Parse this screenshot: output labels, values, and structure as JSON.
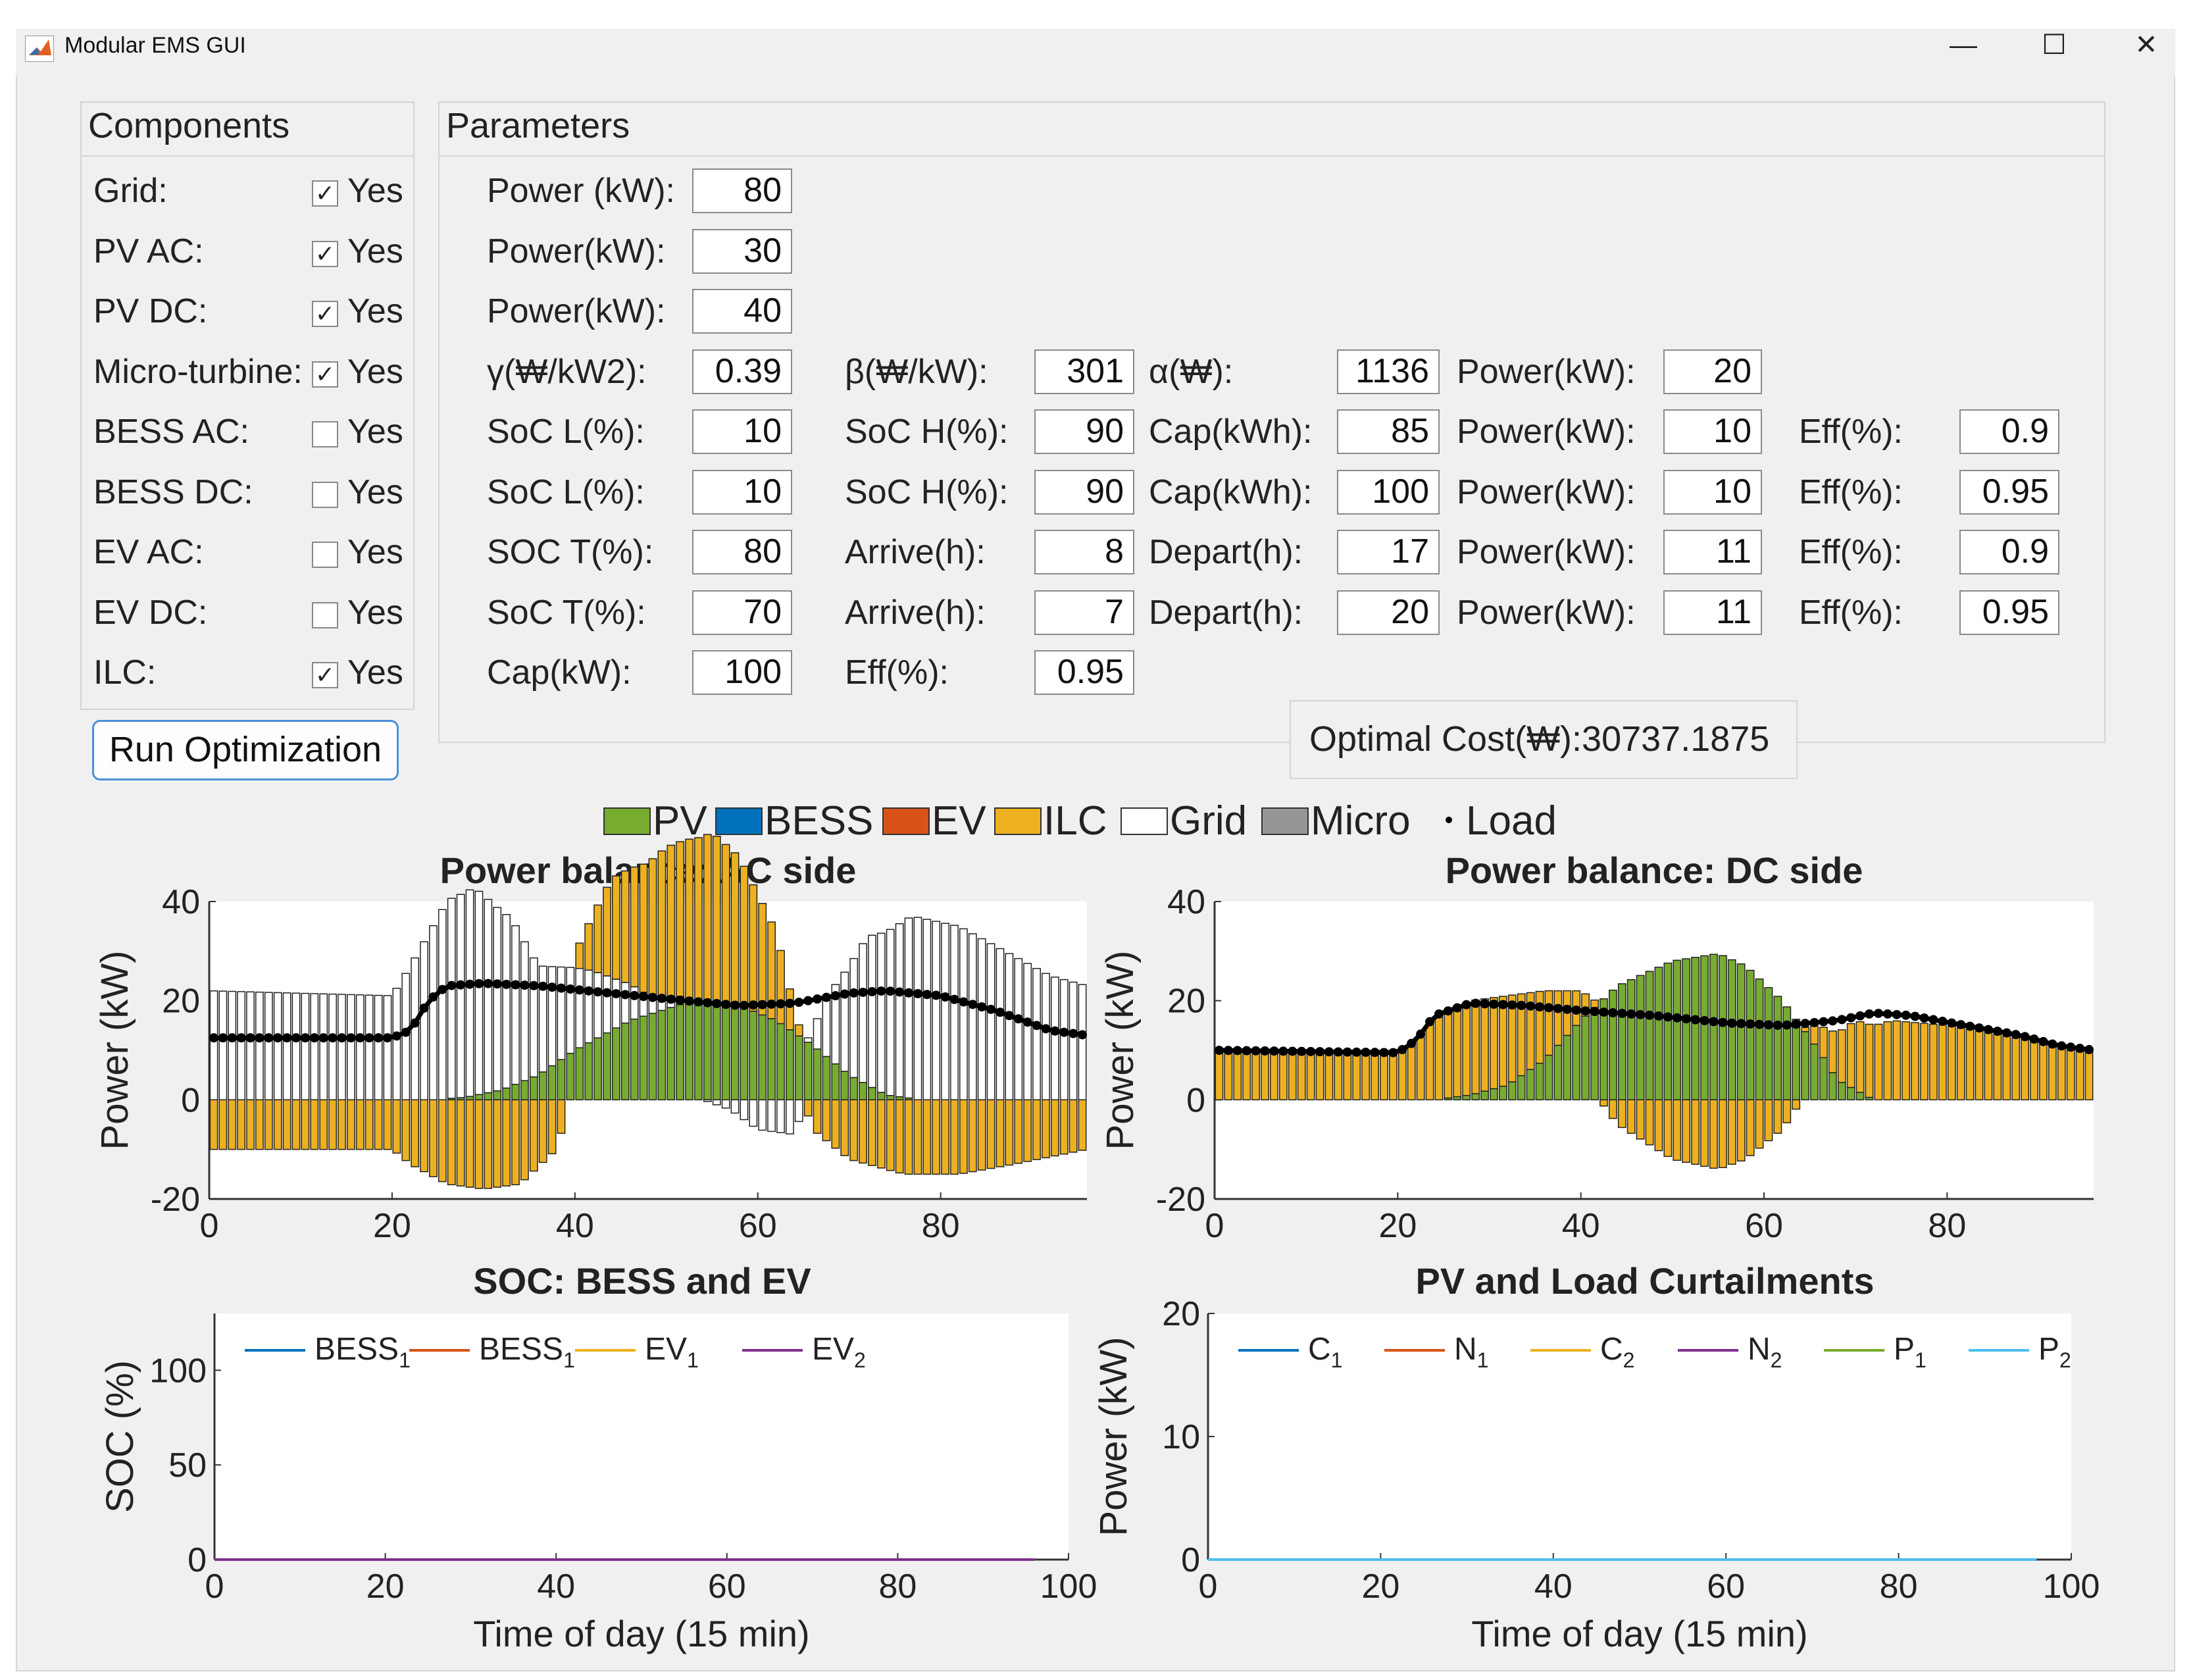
{
  "window": {
    "title": "Modular EMS GUI",
    "minimize": "—",
    "maximize": "☐",
    "close": "✕"
  },
  "components": {
    "title": "Components",
    "items": [
      {
        "label": "Grid:",
        "checked": true,
        "yes": "Yes"
      },
      {
        "label": "PV AC:",
        "checked": true,
        "yes": "Yes"
      },
      {
        "label": "PV DC:",
        "checked": true,
        "yes": "Yes"
      },
      {
        "label": "Micro-turbine:",
        "checked": true,
        "yes": "Yes"
      },
      {
        "label": "BESS AC:",
        "checked": false,
        "yes": "Yes"
      },
      {
        "label": "BESS DC:",
        "checked": false,
        "yes": "Yes"
      },
      {
        "label": "EV AC:",
        "checked": false,
        "yes": "Yes"
      },
      {
        "label": "EV DC:",
        "checked": false,
        "yes": "Yes"
      },
      {
        "label": "ILC:",
        "checked": true,
        "yes": "Yes"
      }
    ],
    "run_button": "Run Optimization"
  },
  "parameters": {
    "title": "Parameters",
    "rows": [
      [
        {
          "label": "Power (kW):",
          "value": "80"
        }
      ],
      [
        {
          "label": "Power(kW):",
          "value": "30"
        }
      ],
      [
        {
          "label": "Power(kW):",
          "value": "40"
        }
      ],
      [
        {
          "label": "γ(₩/kW2):",
          "value": "0.39"
        },
        {
          "label": "β(₩/kW):",
          "value": "301"
        },
        {
          "label": "α(₩):",
          "value": "1136"
        },
        {
          "label": "Power(kW):",
          "value": "20"
        }
      ],
      [
        {
          "label": "SoC L(%):",
          "value": "10"
        },
        {
          "label": "SoC H(%):",
          "value": "90"
        },
        {
          "label": "Cap(kWh):",
          "value": "85"
        },
        {
          "label": "Power(kW):",
          "value": "10"
        },
        {
          "label": "Eff(%):",
          "value": "0.9"
        }
      ],
      [
        {
          "label": "SoC L(%):",
          "value": "10"
        },
        {
          "label": "SoC H(%):",
          "value": "90"
        },
        {
          "label": "Cap(kWh):",
          "value": "100"
        },
        {
          "label": "Power(kW):",
          "value": "10"
        },
        {
          "label": "Eff(%):",
          "value": "0.95"
        }
      ],
      [
        {
          "label": "SOC T(%):",
          "value": "80"
        },
        {
          "label": "Arrive(h):",
          "value": "8"
        },
        {
          "label": "Depart(h):",
          "value": "17"
        },
        {
          "label": "Power(kW):",
          "value": "11"
        },
        {
          "label": "Eff(%):",
          "value": "0.9"
        }
      ],
      [
        {
          "label": "SoC T(%):",
          "value": "70"
        },
        {
          "label": "Arrive(h):",
          "value": "7"
        },
        {
          "label": "Depart(h):",
          "value": "20"
        },
        {
          "label": "Power(kW):",
          "value": "11"
        },
        {
          "label": "Eff(%):",
          "value": "0.95"
        }
      ],
      [
        {
          "label": "Cap(kW):",
          "value": "100"
        },
        {
          "label": "Eff(%):",
          "value": "0.95"
        }
      ]
    ],
    "optimal_cost_label": "Optimal Cost(₩):",
    "optimal_cost_value": "30737.1875"
  },
  "colors": {
    "pv": "#77ac30",
    "bess": "#0072bd",
    "ev": "#d95319",
    "ilc": "#edb120",
    "grid": "#ffffff",
    "micro": "#969696",
    "load": "#000000",
    "c1": "#0072bd",
    "n1": "#d95319",
    "c2": "#edb120",
    "n2": "#7e2f8e",
    "p1": "#77ac30",
    "p2": "#4dbeee"
  },
  "top_legend": [
    {
      "key": "pv",
      "label": "PV"
    },
    {
      "key": "bess",
      "label": "BESS"
    },
    {
      "key": "ev",
      "label": "EV"
    },
    {
      "key": "ilc",
      "label": "ILC"
    },
    {
      "key": "grid",
      "label": "Grid"
    },
    {
      "key": "micro",
      "label": "Micro"
    },
    {
      "key": "load",
      "label": "Load"
    }
  ],
  "chart_data": [
    {
      "type": "bar",
      "title": "Power balance: AC side",
      "xlabel": "",
      "ylabel": "Power (kW)",
      "xlim": [
        0,
        96
      ],
      "ylim": [
        -20,
        40
      ],
      "xticks": [
        0,
        20,
        40,
        60,
        80
      ],
      "yticks": [
        -20,
        0,
        20,
        40
      ],
      "series": [
        {
          "name": "Grid",
          "key": "grid",
          "points": [
            [
              0,
              22
            ],
            [
              20,
              21
            ],
            [
              22,
              27
            ],
            [
              26,
              40
            ],
            [
              29,
              42
            ],
            [
              33,
              34
            ],
            [
              36,
              22
            ],
            [
              42,
              14
            ],
            [
              48,
              4
            ],
            [
              54,
              0
            ],
            [
              57,
              -2
            ],
            [
              60,
              -6
            ],
            [
              64,
              -7
            ],
            [
              68,
              14
            ],
            [
              72,
              30
            ],
            [
              77,
              37
            ],
            [
              82,
              35
            ],
            [
              88,
              29
            ],
            [
              92,
              25
            ],
            [
              96,
              23
            ]
          ]
        },
        {
          "name": "ILC",
          "key": "ilc",
          "points": [
            [
              0,
              -10
            ],
            [
              20,
              -10
            ],
            [
              22,
              -13
            ],
            [
              26,
              -17
            ],
            [
              30,
              -18
            ],
            [
              34,
              -17
            ],
            [
              38,
              -10
            ],
            [
              40,
              3
            ],
            [
              44,
              20
            ],
            [
              50,
              30
            ],
            [
              55,
              34
            ],
            [
              58,
              30
            ],
            [
              62,
              18
            ],
            [
              64,
              5
            ],
            [
              66,
              -6
            ],
            [
              70,
              -12
            ],
            [
              76,
              -15
            ],
            [
              82,
              -15
            ],
            [
              88,
              -13
            ],
            [
              96,
              -10
            ]
          ]
        },
        {
          "name": "PV",
          "key": "pv",
          "points": [
            [
              0,
              0
            ],
            [
              24,
              0
            ],
            [
              28,
              0.5
            ],
            [
              32,
              2
            ],
            [
              36,
              5
            ],
            [
              40,
              10
            ],
            [
              46,
              16
            ],
            [
              52,
              19.5
            ],
            [
              55,
              20
            ],
            [
              58,
              19
            ],
            [
              62,
              16
            ],
            [
              66,
              11
            ],
            [
              70,
              5
            ],
            [
              74,
              1
            ],
            [
              78,
              0
            ],
            [
              96,
              0
            ]
          ]
        },
        {
          "name": "Load",
          "key": "load",
          "points": [
            [
              0,
              12.5
            ],
            [
              20,
              12.5
            ],
            [
              22,
              14
            ],
            [
              24,
              20
            ],
            [
              26,
              23
            ],
            [
              30,
              23.5
            ],
            [
              36,
              23
            ],
            [
              44,
              21.5
            ],
            [
              52,
              20
            ],
            [
              58,
              19
            ],
            [
              64,
              19.5
            ],
            [
              70,
              21.5
            ],
            [
              74,
              22
            ],
            [
              80,
              21
            ],
            [
              86,
              18
            ],
            [
              92,
              14
            ],
            [
              96,
              13
            ]
          ]
        }
      ]
    },
    {
      "type": "bar",
      "title": "Power balance: DC side",
      "xlabel": "",
      "ylabel": "Power (kW)",
      "xlim": [
        0,
        96
      ],
      "ylim": [
        -20,
        40
      ],
      "xticks": [
        0,
        20,
        40,
        60,
        80
      ],
      "yticks": [
        -20,
        0,
        20,
        40
      ],
      "series": [
        {
          "name": "ILC",
          "key": "ilc",
          "points": [
            [
              0,
              10
            ],
            [
              20,
              10
            ],
            [
              22,
              12
            ],
            [
              24,
              17
            ],
            [
              28,
              19
            ],
            [
              32,
              18
            ],
            [
              36,
              14
            ],
            [
              40,
              6
            ],
            [
              42,
              0
            ],
            [
              44,
              -5
            ],
            [
              50,
              -12
            ],
            [
              55,
              -14
            ],
            [
              58,
              -12
            ],
            [
              62,
              -6
            ],
            [
              66,
              5
            ],
            [
              70,
              14
            ],
            [
              74,
              16
            ],
            [
              80,
              15
            ],
            [
              86,
              13
            ],
            [
              92,
              11
            ],
            [
              96,
              10
            ]
          ]
        },
        {
          "name": "PV",
          "key": "pv",
          "points": [
            [
              0,
              0
            ],
            [
              24,
              0
            ],
            [
              28,
              1
            ],
            [
              32,
              3
            ],
            [
              36,
              8
            ],
            [
              40,
              16
            ],
            [
              44,
              23
            ],
            [
              50,
              28
            ],
            [
              55,
              29.5
            ],
            [
              58,
              27
            ],
            [
              62,
              20
            ],
            [
              66,
              10
            ],
            [
              68,
              4
            ],
            [
              72,
              0
            ],
            [
              96,
              0
            ]
          ]
        },
        {
          "name": "Load",
          "key": "load",
          "points": [
            [
              0,
              10
            ],
            [
              20,
              9.5
            ],
            [
              22,
              12
            ],
            [
              24,
              17
            ],
            [
              28,
              19.5
            ],
            [
              34,
              19
            ],
            [
              40,
              18
            ],
            [
              48,
              17
            ],
            [
              56,
              15.5
            ],
            [
              62,
              15
            ],
            [
              68,
              16
            ],
            [
              72,
              17.5
            ],
            [
              76,
              17
            ],
            [
              82,
              15
            ],
            [
              88,
              13
            ],
            [
              92,
              11
            ],
            [
              96,
              10
            ]
          ]
        }
      ]
    },
    {
      "type": "line",
      "title": "SOC: BESS and EV",
      "xlabel": "Time of day (15 min)",
      "ylabel": "SOC (%)",
      "xlim": [
        0,
        100
      ],
      "ylim": [
        0,
        130
      ],
      "xticks": [
        0,
        20,
        40,
        60,
        80,
        100
      ],
      "yticks": [
        0,
        50,
        100
      ],
      "series": [
        {
          "name": "BESS",
          "sub": "1",
          "key": "c1",
          "values": "all 0 for x 0-96"
        },
        {
          "name": "BESS",
          "sub": "1",
          "key": "n1",
          "values": "all 0 for x 0-96"
        },
        {
          "name": "EV",
          "sub": "1",
          "key": "c2",
          "values": "all 0 for x 0-96"
        },
        {
          "name": "EV",
          "sub": "2",
          "key": "n2",
          "values": "all 0 for x 0-96"
        }
      ]
    },
    {
      "type": "line",
      "title": "PV and Load Curtailments",
      "xlabel": "Time of day (15 min)",
      "ylabel": "Power (kW)",
      "xlim": [
        0,
        100
      ],
      "ylim": [
        0,
        20
      ],
      "xticks": [
        0,
        20,
        40,
        60,
        80,
        100
      ],
      "yticks": [
        0,
        10,
        20
      ],
      "series": [
        {
          "name": "C",
          "sub": "1",
          "key": "c1",
          "values": "all 0 for x 0-96"
        },
        {
          "name": "N",
          "sub": "1",
          "key": "n1",
          "values": "all 0 for x 0-96"
        },
        {
          "name": "C",
          "sub": "2",
          "key": "c2",
          "values": "all 0 for x 0-96"
        },
        {
          "name": "N",
          "sub": "2",
          "key": "n2",
          "values": "all 0 for x 0-96"
        },
        {
          "name": "P",
          "sub": "1",
          "key": "p1",
          "values": "all 0 for x 0-96"
        },
        {
          "name": "P",
          "sub": "2",
          "key": "p2",
          "values": "all 0 for x 0-96"
        }
      ]
    }
  ]
}
